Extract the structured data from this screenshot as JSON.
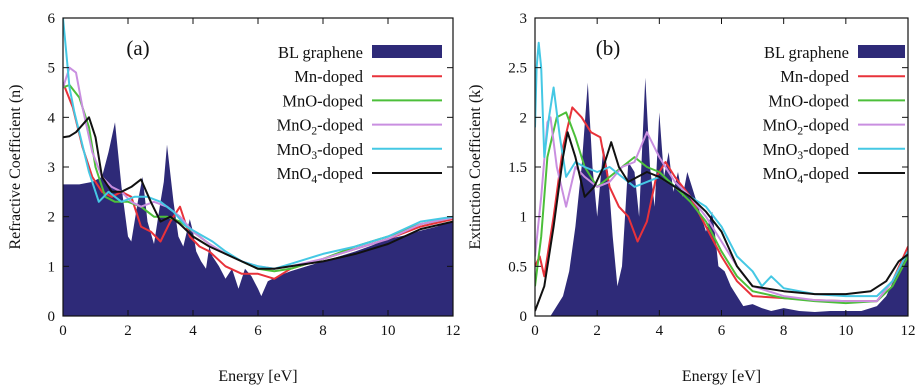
{
  "colors": {
    "BL graphene": "#2e2a78",
    "Mn-doped": "#e8323a",
    "MnO-doped": "#4cbf3a",
    "MnO2-doped": "#c98fe0",
    "MnO3-doped": "#45c8e4",
    "MnO4-doped": "#111111"
  },
  "chart_data": [
    {
      "type": "area+line",
      "panel_label": "(a)",
      "xlabel": "Energy [eV]",
      "ylabel": "Refractive Coefficient (n)",
      "xlim": [
        0,
        12
      ],
      "ylim": [
        0,
        6
      ],
      "xticks": [
        "0",
        "2",
        "4",
        "6",
        "8",
        "10",
        "12"
      ],
      "yticks": [
        "0",
        "1",
        "2",
        "3",
        "4",
        "5",
        "6"
      ],
      "legend_position": "top-right",
      "series": [
        {
          "name": "BL graphene",
          "style": "filled",
          "x": [
            0,
            0.5,
            0.9,
            1.2,
            1.4,
            1.6,
            1.8,
            2.0,
            2.1,
            2.3,
            2.45,
            2.6,
            2.8,
            3.0,
            3.1,
            3.2,
            3.4,
            3.55,
            3.7,
            3.9,
            4.0,
            4.1,
            4.25,
            4.4,
            4.5,
            4.6,
            4.8,
            5.0,
            5.2,
            5.4,
            5.6,
            5.8,
            6.0,
            6.1,
            6.3,
            6.6,
            7.0,
            7.5,
            8.0,
            8.5,
            9.0,
            9.5,
            10.0,
            10.5,
            11.0,
            11.5,
            11.8,
            12.0
          ],
          "y": [
            2.65,
            2.65,
            2.7,
            2.8,
            3.3,
            3.9,
            2.6,
            1.6,
            1.5,
            2.3,
            2.8,
            1.9,
            1.45,
            2.3,
            2.7,
            3.45,
            2.3,
            1.6,
            1.4,
            1.95,
            1.7,
            1.3,
            1.1,
            0.95,
            1.4,
            1.2,
            1.0,
            0.75,
            0.95,
            0.55,
            0.95,
            0.8,
            0.55,
            0.4,
            0.7,
            0.8,
            0.9,
            1.0,
            1.1,
            1.2,
            1.3,
            1.42,
            1.55,
            1.62,
            1.72,
            1.8,
            1.88,
            1.9
          ]
        },
        {
          "name": "Mn-doped",
          "x": [
            0,
            0.3,
            0.6,
            0.9,
            1.2,
            1.5,
            1.8,
            2.1,
            2.4,
            2.7,
            3.0,
            3.3,
            3.6,
            3.9,
            4.2,
            4.5,
            5.0,
            5.5,
            6.0,
            6.5,
            7.0,
            8.0,
            9.0,
            10.0,
            11.0,
            12.0
          ],
          "y": [
            4.7,
            4.2,
            3.4,
            2.8,
            2.5,
            2.4,
            2.5,
            2.4,
            1.8,
            1.7,
            1.5,
            1.9,
            2.2,
            1.6,
            1.4,
            1.3,
            1.0,
            0.85,
            0.85,
            0.75,
            0.95,
            1.15,
            1.35,
            1.55,
            1.8,
            1.95
          ]
        },
        {
          "name": "MnO-doped",
          "x": [
            0,
            0.2,
            0.5,
            0.8,
            1.0,
            1.3,
            1.6,
            2.0,
            2.4,
            2.8,
            3.2,
            3.6,
            4.0,
            4.5,
            5.0,
            5.5,
            6.0,
            6.5,
            7.0,
            8.0,
            9.0,
            10.0,
            11.0,
            12.0
          ],
          "y": [
            4.6,
            4.65,
            4.4,
            3.8,
            3.0,
            2.4,
            2.3,
            2.3,
            2.2,
            2.0,
            2.0,
            1.9,
            1.7,
            1.45,
            1.25,
            1.1,
            0.95,
            0.9,
            0.95,
            1.15,
            1.4,
            1.6,
            1.85,
            1.98
          ]
        },
        {
          "name": "MnO2-doped",
          "x": [
            0,
            0.2,
            0.4,
            0.6,
            0.9,
            1.2,
            1.5,
            1.8,
            2.1,
            2.4,
            2.8,
            3.2,
            3.6,
            4.0,
            4.5,
            5.0,
            5.5,
            6.0,
            6.5,
            7.0,
            8.0,
            9.0,
            10.0,
            11.0,
            12.0
          ],
          "y": [
            4.6,
            5.0,
            4.9,
            4.2,
            3.3,
            2.8,
            2.6,
            2.5,
            2.3,
            2.2,
            2.3,
            2.2,
            2.0,
            1.7,
            1.45,
            1.25,
            1.1,
            1.0,
            0.95,
            1.0,
            1.15,
            1.35,
            1.55,
            1.85,
            1.98
          ]
        },
        {
          "name": "MnO3-doped",
          "x": [
            0,
            0.1,
            0.2,
            0.35,
            0.5,
            0.8,
            1.1,
            1.4,
            1.8,
            2.2,
            2.6,
            3.0,
            3.4,
            3.8,
            4.2,
            4.6,
            5.0,
            5.5,
            6.0,
            6.5,
            7.0,
            8.0,
            9.0,
            10.0,
            11.0,
            12.0
          ],
          "y": [
            6.0,
            5.3,
            4.6,
            4.1,
            3.7,
            2.9,
            2.3,
            2.5,
            2.3,
            2.4,
            2.4,
            2.3,
            2.1,
            1.8,
            1.65,
            1.5,
            1.3,
            1.1,
            1.0,
            0.95,
            1.05,
            1.25,
            1.4,
            1.6,
            1.9,
            2.0
          ]
        },
        {
          "name": "MnO4-doped",
          "x": [
            0,
            0.2,
            0.4,
            0.6,
            0.8,
            1.0,
            1.2,
            1.5,
            1.8,
            2.1,
            2.4,
            2.7,
            3.0,
            3.3,
            3.6,
            4.0,
            4.5,
            5.0,
            5.5,
            6.0,
            6.5,
            7.0,
            8.0,
            9.0,
            10.0,
            11.0,
            12.0
          ],
          "y": [
            3.6,
            3.62,
            3.7,
            3.85,
            4.0,
            3.6,
            2.8,
            2.5,
            2.5,
            2.6,
            2.75,
            2.3,
            1.9,
            2.0,
            1.85,
            1.6,
            1.4,
            1.25,
            1.1,
            0.95,
            0.95,
            1.0,
            1.1,
            1.25,
            1.45,
            1.75,
            1.9
          ]
        }
      ]
    },
    {
      "type": "area+line",
      "panel_label": "(b)",
      "xlabel": "Energy [eV]",
      "ylabel": "Extinction Coefficient (k)",
      "xlim": [
        0,
        12
      ],
      "ylim": [
        0,
        3
      ],
      "xticks": [
        "0",
        "2",
        "4",
        "6",
        "8",
        "10",
        "12"
      ],
      "yticks": [
        "0",
        "0.5",
        "1",
        "1.5",
        "2",
        "2.5",
        "3"
      ],
      "legend_position": "top-right",
      "series": [
        {
          "name": "BL graphene",
          "style": "filled",
          "x": [
            0,
            0.5,
            0.9,
            1.1,
            1.3,
            1.5,
            1.7,
            1.85,
            2.0,
            2.2,
            2.35,
            2.5,
            2.65,
            2.8,
            3.0,
            3.2,
            3.35,
            3.55,
            3.7,
            3.85,
            4.0,
            4.15,
            4.3,
            4.45,
            4.6,
            4.75,
            4.9,
            5.1,
            5.3,
            5.5,
            5.7,
            5.8,
            5.9,
            6.1,
            6.3,
            6.5,
            6.7,
            7.0,
            7.3,
            7.6,
            8.0,
            8.5,
            9.0,
            9.5,
            10.0,
            10.5,
            11.0,
            11.3,
            11.6,
            11.8,
            12.0
          ],
          "y": [
            0,
            0,
            0.2,
            0.45,
            0.9,
            1.5,
            2.35,
            1.5,
            1.0,
            1.7,
            1.45,
            0.8,
            0.3,
            0.5,
            1.55,
            1.45,
            1.0,
            2.4,
            1.5,
            1.1,
            2.05,
            1.4,
            1.65,
            1.25,
            1.45,
            1.2,
            1.45,
            1.25,
            1.05,
            0.85,
            1.05,
            0.8,
            0.5,
            0.45,
            0.3,
            0.2,
            0.1,
            0.12,
            0.08,
            0.05,
            0.08,
            0.05,
            0.04,
            0.05,
            0.05,
            0.05,
            0.1,
            0.2,
            0.4,
            0.55,
            0.65
          ]
        },
        {
          "name": "Mn-doped",
          "x": [
            0,
            0.15,
            0.3,
            0.6,
            0.9,
            1.2,
            1.5,
            1.8,
            2.1,
            2.4,
            2.7,
            3.0,
            3.3,
            3.6,
            3.9,
            4.2,
            4.5,
            5.0,
            5.5,
            6.0,
            6.5,
            7.0,
            8.0,
            9.0,
            10.0,
            11.0,
            11.5,
            12.0
          ],
          "y": [
            0.5,
            0.6,
            0.4,
            1.0,
            1.7,
            2.1,
            2.0,
            1.85,
            1.8,
            1.3,
            1.1,
            1.0,
            0.75,
            0.95,
            1.4,
            1.55,
            1.4,
            1.2,
            0.9,
            0.6,
            0.35,
            0.2,
            0.18,
            0.16,
            0.15,
            0.15,
            0.35,
            0.7
          ]
        },
        {
          "name": "MnO-doped",
          "x": [
            0,
            0.2,
            0.4,
            0.7,
            1.0,
            1.3,
            1.6,
            2.0,
            2.4,
            2.8,
            3.2,
            3.6,
            4.0,
            4.5,
            5.0,
            5.5,
            6.0,
            6.5,
            7.0,
            8.0,
            9.0,
            10.0,
            11.0,
            11.5,
            12.0
          ],
          "y": [
            0.3,
            0.8,
            1.6,
            2.0,
            2.05,
            1.8,
            1.5,
            1.3,
            1.4,
            1.5,
            1.6,
            1.5,
            1.45,
            1.3,
            1.15,
            0.95,
            0.65,
            0.4,
            0.25,
            0.18,
            0.15,
            0.13,
            0.15,
            0.3,
            0.6
          ]
        },
        {
          "name": "MnO2-doped",
          "x": [
            0,
            0.2,
            0.4,
            0.5,
            0.7,
            1.0,
            1.3,
            1.6,
            2.0,
            2.4,
            2.8,
            3.2,
            3.6,
            4.0,
            4.5,
            5.0,
            5.5,
            6.0,
            6.5,
            7.0,
            8.0,
            9.0,
            10.0,
            11.0,
            11.5,
            12.0
          ],
          "y": [
            0.6,
            1.2,
            1.95,
            2.0,
            1.5,
            1.1,
            1.5,
            1.4,
            1.3,
            1.35,
            1.5,
            1.55,
            1.85,
            1.6,
            1.35,
            1.2,
            1.0,
            0.75,
            0.5,
            0.3,
            0.2,
            0.16,
            0.15,
            0.15,
            0.35,
            0.65
          ]
        },
        {
          "name": "MnO3-doped",
          "x": [
            0,
            0.05,
            0.12,
            0.2,
            0.3,
            0.45,
            0.6,
            0.8,
            1.0,
            1.3,
            1.6,
            2.0,
            2.4,
            2.8,
            3.2,
            3.6,
            4.0,
            4.5,
            5.0,
            5.5,
            6.0,
            6.5,
            7.0,
            7.3,
            7.6,
            8.0,
            9.0,
            10.0,
            11.0,
            11.5,
            12.0
          ],
          "y": [
            1.9,
            2.5,
            2.75,
            2.5,
            1.6,
            2.0,
            2.3,
            1.8,
            1.4,
            1.55,
            1.5,
            1.45,
            1.5,
            1.4,
            1.3,
            1.35,
            1.4,
            1.3,
            1.2,
            1.1,
            0.9,
            0.6,
            0.45,
            0.3,
            0.4,
            0.28,
            0.22,
            0.2,
            0.2,
            0.35,
            0.65
          ]
        },
        {
          "name": "MnO4-doped",
          "x": [
            0,
            0.3,
            0.6,
            0.9,
            1.05,
            1.3,
            1.6,
            1.9,
            2.2,
            2.45,
            2.7,
            3.0,
            3.3,
            3.6,
            4.0,
            4.5,
            5.0,
            5.5,
            6.0,
            6.5,
            7.0,
            8.0,
            9.0,
            10.0,
            10.8,
            11.3,
            11.7,
            12.0
          ],
          "y": [
            0.05,
            0.3,
            0.9,
            1.6,
            1.85,
            1.6,
            1.2,
            1.3,
            1.5,
            1.75,
            1.5,
            1.35,
            1.4,
            1.45,
            1.4,
            1.3,
            1.2,
            1.05,
            0.85,
            0.5,
            0.3,
            0.25,
            0.22,
            0.22,
            0.25,
            0.35,
            0.55,
            0.62
          ]
        }
      ]
    }
  ]
}
